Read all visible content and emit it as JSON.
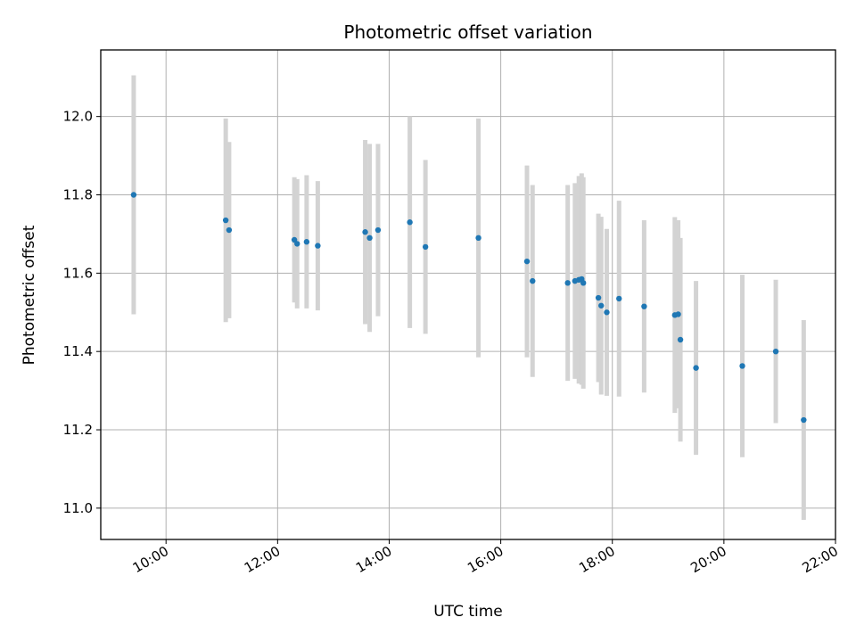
{
  "chart_data": {
    "type": "scatter",
    "title": "Photometric offset variation",
    "xlabel": "UTC time",
    "ylabel": "Photometric offset",
    "x_axis_kind": "time-of-day (hours)",
    "xlim": [
      8.83,
      22.0
    ],
    "ylim": [
      10.92,
      12.17
    ],
    "x_ticks": [
      {
        "value": 10,
        "label": "10:00"
      },
      {
        "value": 12,
        "label": "12:00"
      },
      {
        "value": 14,
        "label": "14:00"
      },
      {
        "value": 16,
        "label": "16:00"
      },
      {
        "value": 18,
        "label": "18:00"
      },
      {
        "value": 20,
        "label": "20:00"
      },
      {
        "value": 22,
        "label": "22:00"
      }
    ],
    "y_ticks": [
      {
        "value": 11.0,
        "label": "11.0"
      },
      {
        "value": 11.2,
        "label": "11.2"
      },
      {
        "value": 11.4,
        "label": "11.4"
      },
      {
        "value": 11.6,
        "label": "11.6"
      },
      {
        "value": 11.8,
        "label": "11.8"
      },
      {
        "value": 12.0,
        "label": "12.0"
      }
    ],
    "grid": true,
    "marker_color": "#1f77b4",
    "errorbar_color": "#d3d3d3",
    "points": [
      {
        "x": 9.42,
        "y": 11.8,
        "err": 0.305
      },
      {
        "x": 11.07,
        "y": 11.735,
        "err": 0.26
      },
      {
        "x": 11.13,
        "y": 11.71,
        "err": 0.225
      },
      {
        "x": 12.3,
        "y": 11.685,
        "err": 0.16
      },
      {
        "x": 12.35,
        "y": 11.675,
        "err": 0.165
      },
      {
        "x": 12.52,
        "y": 11.68,
        "err": 0.17
      },
      {
        "x": 12.72,
        "y": 11.67,
        "err": 0.165
      },
      {
        "x": 13.57,
        "y": 11.705,
        "err": 0.235
      },
      {
        "x": 13.65,
        "y": 11.69,
        "err": 0.24
      },
      {
        "x": 13.8,
        "y": 11.71,
        "err": 0.22
      },
      {
        "x": 14.37,
        "y": 11.73,
        "err": 0.27
      },
      {
        "x": 14.65,
        "y": 11.667,
        "err": 0.222
      },
      {
        "x": 15.6,
        "y": 11.69,
        "err": 0.305
      },
      {
        "x": 16.47,
        "y": 11.63,
        "err": 0.245
      },
      {
        "x": 16.57,
        "y": 11.58,
        "err": 0.245
      },
      {
        "x": 17.2,
        "y": 11.575,
        "err": 0.25
      },
      {
        "x": 17.33,
        "y": 11.58,
        "err": 0.25
      },
      {
        "x": 17.4,
        "y": 11.583,
        "err": 0.265
      },
      {
        "x": 17.45,
        "y": 11.585,
        "err": 0.27
      },
      {
        "x": 17.48,
        "y": 11.575,
        "err": 0.27
      },
      {
        "x": 17.75,
        "y": 11.537,
        "err": 0.215
      },
      {
        "x": 17.8,
        "y": 11.517,
        "err": 0.227
      },
      {
        "x": 17.9,
        "y": 11.5,
        "err": 0.213
      },
      {
        "x": 18.12,
        "y": 11.535,
        "err": 0.25
      },
      {
        "x": 18.57,
        "y": 11.515,
        "err": 0.22
      },
      {
        "x": 19.12,
        "y": 11.493,
        "err": 0.25
      },
      {
        "x": 19.18,
        "y": 11.495,
        "err": 0.24
      },
      {
        "x": 19.22,
        "y": 11.43,
        "err": 0.26
      },
      {
        "x": 19.5,
        "y": 11.358,
        "err": 0.222
      },
      {
        "x": 20.33,
        "y": 11.363,
        "err": 0.233
      },
      {
        "x": 20.93,
        "y": 11.4,
        "err": 0.183
      },
      {
        "x": 21.43,
        "y": 11.225,
        "err": 0.255
      }
    ]
  }
}
